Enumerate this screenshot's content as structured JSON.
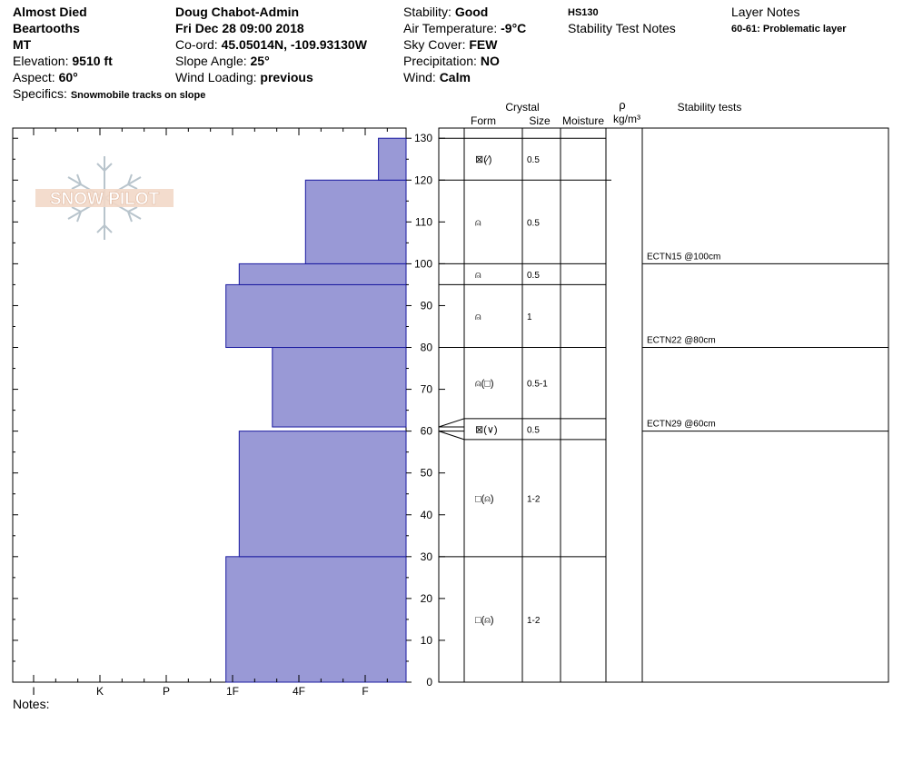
{
  "header": {
    "location_name": "Almost Died",
    "range": "Beartooths",
    "state": "MT",
    "elevation_label": "Elevation:",
    "elevation_value": "9510 ft",
    "aspect_label": "Aspect:",
    "aspect_value": "60°",
    "specifics_label": "Specifics:",
    "specifics_value": "Snowmobile tracks on slope",
    "observer": "Doug Chabot-Admin",
    "datetime": "Fri Dec 28 09:00 2018",
    "coord_label": "Co-ord:",
    "coord_value": "45.05014N, -109.93130W",
    "slope_label": "Slope Angle:",
    "slope_value": "25°",
    "wind_loading_label": "Wind Loading:",
    "wind_loading_value": "previous",
    "stability_label": "Stability:",
    "stability_value": "Good",
    "air_temp_label": "Air Temperature:",
    "air_temp_value": "-9°C",
    "sky_label": "Sky Cover:",
    "sky_value": "FEW",
    "precip_label": "Precipitation:",
    "precip_value": "NO",
    "wind_label": "Wind:",
    "wind_value": "Calm",
    "hs": "HS130",
    "stability_notes_title": "Stability Test Notes",
    "layer_notes_title": "Layer Notes",
    "layer_note": "60-61: Problematic layer"
  },
  "logo_text": "SNOW PILOT",
  "notes_label": "Notes:",
  "columns": {
    "crystal": "Crystal",
    "form": "Form",
    "size": "Size",
    "moisture": "Moisture",
    "rho": "ρ",
    "density_unit": "kg/m³",
    "stability_tests": "Stability tests"
  },
  "colors": {
    "bar_fill": "#9999d6",
    "bar_stroke": "#1a1aa0",
    "weak_layer": "#8b1a3a"
  },
  "chart_data": {
    "type": "bar",
    "title": "",
    "hardness_scale": [
      "I",
      "K",
      "P",
      "1F",
      "4F",
      "F"
    ],
    "xlabel": "",
    "ylabel": "",
    "ylim": [
      0,
      130
    ],
    "y_ticks": [
      0,
      10,
      20,
      30,
      40,
      50,
      60,
      70,
      80,
      90,
      100,
      110,
      120,
      130
    ],
    "layers": [
      {
        "bottom": 0,
        "top": 30,
        "hardness": "1F-"
      },
      {
        "bottom": 30,
        "top": 60,
        "hardness": "1F"
      },
      {
        "bottom": 60,
        "top": 61,
        "hardness": "F"
      },
      {
        "bottom": 61,
        "top": 80,
        "hardness": "4F-"
      },
      {
        "bottom": 80,
        "top": 95,
        "hardness": "1F-"
      },
      {
        "bottom": 95,
        "top": 100,
        "hardness": "1F"
      },
      {
        "bottom": 100,
        "top": 120,
        "hardness": "4F"
      },
      {
        "bottom": 120,
        "top": 130,
        "hardness": "F+"
      }
    ],
    "hardness_index": [
      2.9,
      3.1,
      5.7,
      3.6,
      2.9,
      3.1,
      4.1,
      5.2
    ]
  },
  "crystal_layers": [
    {
      "bottom": 0,
      "top": 30,
      "form": "□(⍝)",
      "size": "1-2"
    },
    {
      "bottom": 30,
      "top": 58,
      "form": "□(⍝)",
      "size": "1-2"
    },
    {
      "bottom": 58,
      "top": 63,
      "form": "⊠(∨)",
      "size": "0.5"
    },
    {
      "bottom": 63,
      "top": 80,
      "form": "⍝(□)",
      "size": "0.5-1"
    },
    {
      "bottom": 80,
      "top": 95,
      "form": "⍝",
      "size": "1"
    },
    {
      "bottom": 95,
      "top": 100,
      "form": "⍝",
      "size": "0.5"
    },
    {
      "bottom": 100,
      "top": 120,
      "form": "⍝",
      "size": "0.5"
    },
    {
      "bottom": 120,
      "top": 130,
      "form": "⊠(⁄)",
      "size": "0.5"
    }
  ],
  "stability_tests": [
    {
      "depth": 100,
      "label": "ECTN15 @100cm"
    },
    {
      "depth": 80,
      "label": "ECTN22 @80cm"
    },
    {
      "depth": 60,
      "label": "ECTN29 @60cm"
    }
  ]
}
